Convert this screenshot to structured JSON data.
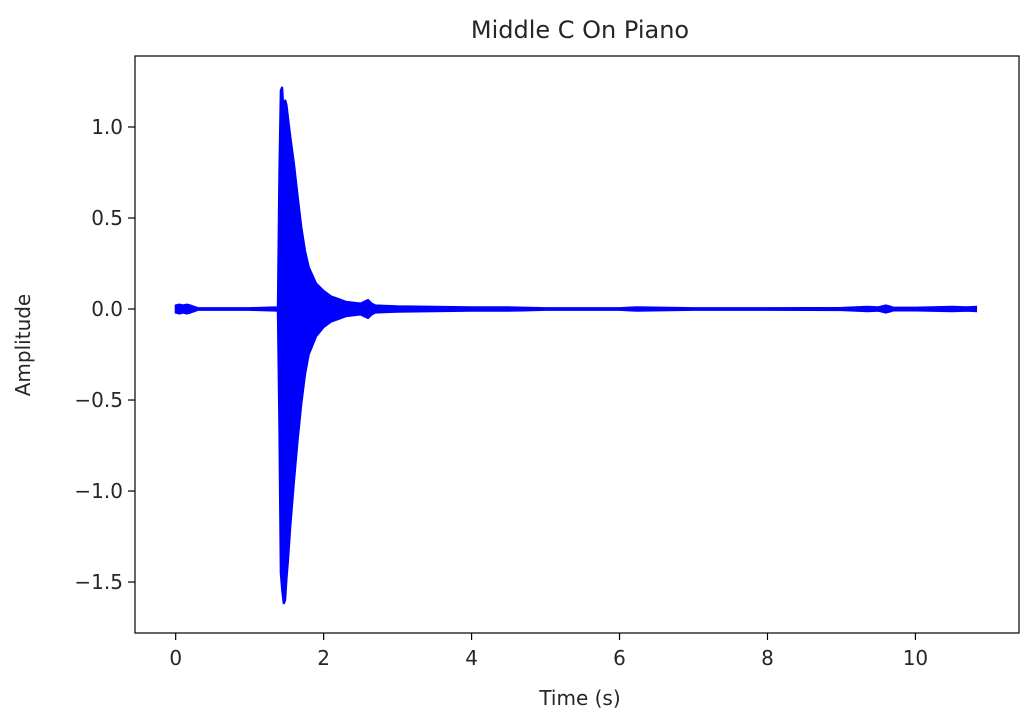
{
  "chart_data": {
    "type": "line",
    "title": "Middle C On Piano",
    "xlabel": "Time (s)",
    "ylabel": "Amplitude",
    "xlim": [
      -0.55,
      11.4
    ],
    "ylim": [
      -1.78,
      1.39
    ],
    "x_ticks": [
      0,
      2,
      4,
      6,
      8,
      10
    ],
    "y_ticks": [
      1.0,
      0.5,
      0.0,
      -0.5,
      -1.0,
      -1.5
    ],
    "x_tick_labels": [
      "0",
      "2",
      "4",
      "6",
      "8",
      "10"
    ],
    "y_tick_labels": [
      "1.0",
      "0.5",
      "0.0",
      "−0.5",
      "−1.0",
      "−1.5"
    ],
    "grid": false,
    "series": [
      {
        "color": "#0000ff",
        "envelope": {
          "x": [
            0.0,
            0.05,
            0.1,
            0.15,
            0.2,
            0.3,
            1.0,
            1.38,
            1.4,
            1.42,
            1.44,
            1.46,
            1.48,
            1.5,
            1.52,
            1.55,
            1.6,
            1.65,
            1.7,
            1.75,
            1.8,
            1.9,
            2.0,
            2.1,
            2.2,
            2.3,
            2.4,
            2.5,
            2.55,
            2.6,
            2.65,
            2.7,
            3.0,
            3.5,
            4.0,
            4.5,
            4.7,
            5.0,
            6.0,
            6.25,
            7.0,
            8.0,
            9.0,
            9.35,
            9.5,
            9.6,
            9.65,
            9.7,
            10.0,
            10.5,
            10.7,
            10.82
          ],
          "upper": [
            0.02,
            0.025,
            0.02,
            0.025,
            0.02,
            0.005,
            0.005,
            0.01,
            0.75,
            1.2,
            1.22,
            1.08,
            1.15,
            1.12,
            1.05,
            0.95,
            0.8,
            0.62,
            0.45,
            0.32,
            0.23,
            0.14,
            0.1,
            0.07,
            0.055,
            0.04,
            0.035,
            0.03,
            0.04,
            0.05,
            0.03,
            0.02,
            0.015,
            0.012,
            0.01,
            0.01,
            0.008,
            0.005,
            0.005,
            0.01,
            0.005,
            0.005,
            0.006,
            0.012,
            0.01,
            0.02,
            0.015,
            0.008,
            0.008,
            0.012,
            0.01,
            0.012
          ],
          "lower": [
            -0.02,
            -0.025,
            -0.02,
            -0.025,
            -0.02,
            -0.005,
            -0.005,
            -0.01,
            -0.65,
            -1.45,
            -1.55,
            -1.62,
            -1.6,
            -1.48,
            -1.38,
            -1.2,
            -0.95,
            -0.72,
            -0.52,
            -0.36,
            -0.25,
            -0.15,
            -0.1,
            -0.07,
            -0.055,
            -0.04,
            -0.035,
            -0.03,
            -0.04,
            -0.05,
            -0.03,
            -0.02,
            -0.015,
            -0.012,
            -0.01,
            -0.01,
            -0.008,
            -0.005,
            -0.005,
            -0.01,
            -0.005,
            -0.005,
            -0.006,
            -0.012,
            -0.01,
            -0.02,
            -0.015,
            -0.008,
            -0.008,
            -0.012,
            -0.01,
            -0.012
          ]
        }
      }
    ]
  }
}
